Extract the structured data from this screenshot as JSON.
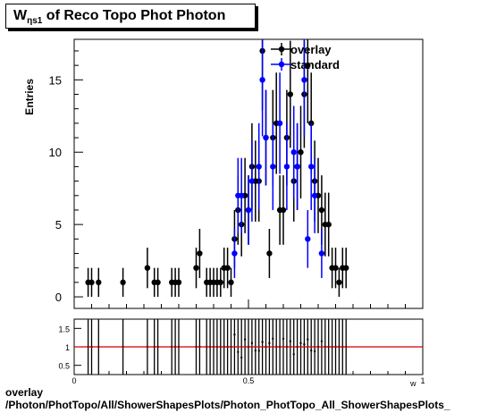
{
  "title": {
    "main": "W",
    "subscript": "ηs1",
    "rest": " of Reco Topo Phot Photon"
  },
  "footer": {
    "line1": "overlay",
    "line2": "/Photon/PhotTopo/All/ShowerShapesPlots/Photon_PhotTopo_All_ShowerShapesPlots_"
  },
  "colors": {
    "overlay": "#000000",
    "standard": "#0000ff",
    "ratio_line": "#cc0000"
  },
  "chart_data": [
    {
      "type": "scatter",
      "ylabel": "Entries",
      "xlim": [
        0,
        1
      ],
      "ylim": [
        -0.8,
        17.8
      ],
      "yticks": [
        0,
        5,
        10,
        15
      ],
      "xticks": [
        0,
        0.5,
        1
      ],
      "legend_position": "top-right",
      "series": [
        {
          "name": "overlay",
          "color": "#000000",
          "x": [
            0.04,
            0.05,
            0.07,
            0.14,
            0.21,
            0.23,
            0.24,
            0.28,
            0.29,
            0.3,
            0.35,
            0.36,
            0.38,
            0.39,
            0.4,
            0.41,
            0.42,
            0.43,
            0.44,
            0.45,
            0.46,
            0.47,
            0.48,
            0.49,
            0.5,
            0.51,
            0.52,
            0.53,
            0.54,
            0.55,
            0.56,
            0.57,
            0.58,
            0.59,
            0.6,
            0.61,
            0.62,
            0.63,
            0.64,
            0.65,
            0.66,
            0.67,
            0.68,
            0.69,
            0.7,
            0.71,
            0.72,
            0.73,
            0.74,
            0.75,
            0.76,
            0.77,
            0.78
          ],
          "y": [
            1,
            1,
            1,
            1,
            2,
            1,
            1,
            1,
            1,
            1,
            2,
            3,
            1,
            1,
            1,
            1,
            1,
            2,
            2,
            1,
            4,
            6,
            5,
            7,
            6,
            9,
            8,
            8,
            17,
            11,
            3,
            11,
            12,
            6,
            6,
            11,
            14,
            8,
            9,
            10,
            14,
            16,
            12,
            8,
            7,
            6,
            5,
            5,
            2,
            2,
            1,
            2,
            2
          ],
          "err": [
            1,
            1,
            1,
            1,
            1.4,
            1,
            1,
            1,
            1,
            1,
            1.4,
            1.7,
            1,
            1,
            1,
            1,
            1,
            1.4,
            1.4,
            1,
            2,
            2.4,
            2.2,
            2.6,
            2.4,
            3,
            2.8,
            2.8,
            4.1,
            3.3,
            1.7,
            3.3,
            3.5,
            2.4,
            2.4,
            3.3,
            3.7,
            2.8,
            3,
            3.2,
            3.7,
            4,
            3.5,
            2.8,
            2.6,
            2.4,
            2.2,
            2.2,
            1.4,
            1.4,
            1,
            1.4,
            1.4
          ]
        },
        {
          "name": "standard",
          "color": "#0000ff",
          "x": [
            0.46,
            0.47,
            0.48,
            0.5,
            0.51,
            0.53,
            0.54,
            0.55,
            0.57,
            0.59,
            0.61,
            0.63,
            0.64,
            0.66,
            0.67,
            0.68,
            0.69,
            0.71
          ],
          "y": [
            3,
            7,
            7,
            6,
            8,
            9,
            15,
            11,
            9,
            12,
            9,
            10,
            9,
            15,
            4,
            9,
            7,
            3
          ],
          "err": [
            1.7,
            2.6,
            2.6,
            2.4,
            2.8,
            3,
            3.9,
            3.3,
            3,
            3.5,
            3,
            3.2,
            3,
            3.9,
            2,
            3,
            2.6,
            1.7
          ]
        }
      ]
    },
    {
      "type": "scatter",
      "ylim": [
        0.25,
        1.75
      ],
      "yticks": [
        0.5,
        1,
        1.5
      ],
      "xlim": [
        0,
        1
      ],
      "xticks": [
        0,
        0.5,
        1
      ],
      "xtick_labels": [
        "0",
        "0.5",
        "1"
      ],
      "xlabel": "w",
      "reference_line": 1,
      "series": [
        {
          "name": "ratio",
          "x": [
            0.04,
            0.05,
            0.07,
            0.14,
            0.21,
            0.23,
            0.24,
            0.28,
            0.29,
            0.3,
            0.35,
            0.36,
            0.38,
            0.39,
            0.4,
            0.41,
            0.42,
            0.43,
            0.44,
            0.45,
            0.46,
            0.47,
            0.48,
            0.49,
            0.5,
            0.51,
            0.52,
            0.53,
            0.54,
            0.55,
            0.56,
            0.57,
            0.58,
            0.59,
            0.6,
            0.61,
            0.62,
            0.63,
            0.64,
            0.65,
            0.66,
            0.67,
            0.68,
            0.69,
            0.7,
            0.71,
            0.72,
            0.73,
            0.74,
            0.75,
            0.76,
            0.77,
            0.78
          ],
          "y": [
            1,
            1,
            1,
            1,
            1,
            1,
            1,
            1,
            1,
            1,
            1,
            1,
            1,
            1,
            1,
            1,
            1,
            1,
            1,
            1,
            1.33,
            0.86,
            0.71,
            1.2,
            1,
            1.1,
            0.9,
            0.89,
            1.13,
            1,
            1.1,
            1.22,
            1,
            1,
            1.22,
            1,
            1.15,
            0.8,
            1,
            1.1,
            1.07,
            1.2,
            0.9,
            0.88,
            1,
            1.15,
            1,
            1,
            1,
            1,
            1,
            1,
            1
          ]
        }
      ]
    }
  ]
}
